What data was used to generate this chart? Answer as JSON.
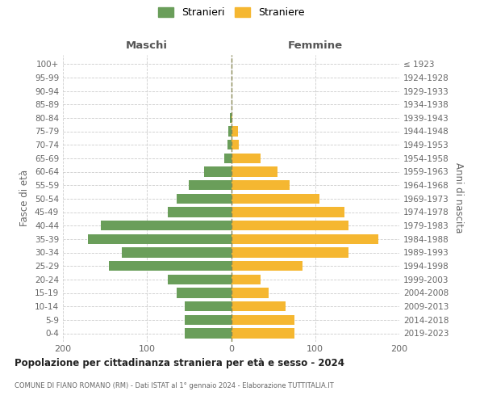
{
  "age_groups": [
    "0-4",
    "5-9",
    "10-14",
    "15-19",
    "20-24",
    "25-29",
    "30-34",
    "35-39",
    "40-44",
    "45-49",
    "50-54",
    "55-59",
    "60-64",
    "65-69",
    "70-74",
    "75-79",
    "80-84",
    "85-89",
    "90-94",
    "95-99",
    "100+"
  ],
  "birth_years": [
    "2019-2023",
    "2014-2018",
    "2009-2013",
    "2004-2008",
    "1999-2003",
    "1994-1998",
    "1989-1993",
    "1984-1988",
    "1979-1983",
    "1974-1978",
    "1969-1973",
    "1964-1968",
    "1959-1963",
    "1954-1958",
    "1949-1953",
    "1944-1948",
    "1939-1943",
    "1934-1938",
    "1929-1933",
    "1924-1928",
    "≤ 1923"
  ],
  "males": [
    55,
    55,
    55,
    65,
    75,
    145,
    130,
    170,
    155,
    75,
    65,
    50,
    32,
    8,
    4,
    3,
    1,
    0,
    0,
    0,
    0
  ],
  "females": [
    75,
    75,
    65,
    45,
    35,
    85,
    140,
    175,
    140,
    135,
    105,
    70,
    55,
    35,
    9,
    8,
    1,
    0,
    0,
    0,
    0
  ],
  "male_color": "#6a9e5a",
  "female_color": "#f5b731",
  "title": "Popolazione per cittadinanza straniera per età e sesso - 2024",
  "subtitle": "COMUNE DI FIANO ROMANO (RM) - Dati ISTAT al 1° gennaio 2024 - Elaborazione TUTTITALIA.IT",
  "ylabel_left": "Fasce di età",
  "ylabel_right": "Anni di nascita",
  "header_left": "Maschi",
  "header_right": "Femmine",
  "legend_males": "Stranieri",
  "legend_females": "Straniere",
  "xlim": 200,
  "bar_height": 0.75
}
